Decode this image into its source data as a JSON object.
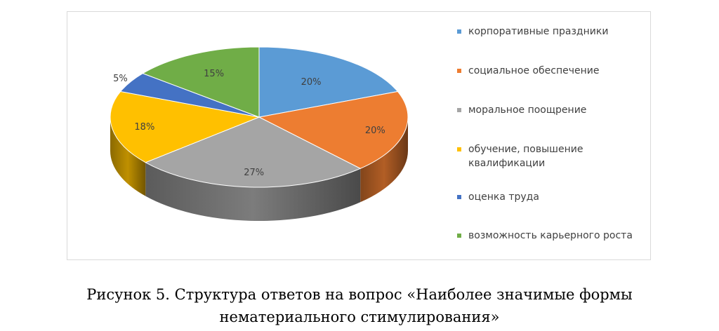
{
  "chart_data": {
    "type": "pie",
    "title": "",
    "categories": [
      "корпоративные праздники",
      "социальное обеспечение",
      "моральное поощрение",
      "обучение, повышение квалификации",
      "оценка труда",
      "возможность карьерного роста"
    ],
    "values": [
      20,
      20,
      27,
      18,
      5,
      15
    ],
    "data_labels": [
      "20%",
      "20%",
      "27%",
      "18%",
      "5%",
      "15%"
    ],
    "colors": [
      "#5b9bd5",
      "#ed7d31",
      "#a5a5a5",
      "#ffc000",
      "#4472c4",
      "#70ad47"
    ],
    "legend_position": "right",
    "style": "3d"
  },
  "caption": {
    "line1": "Рисунок 5. Структура ответов на вопрос «Наиболее значимые формы",
    "line2": "нематериального стимулирования»"
  }
}
